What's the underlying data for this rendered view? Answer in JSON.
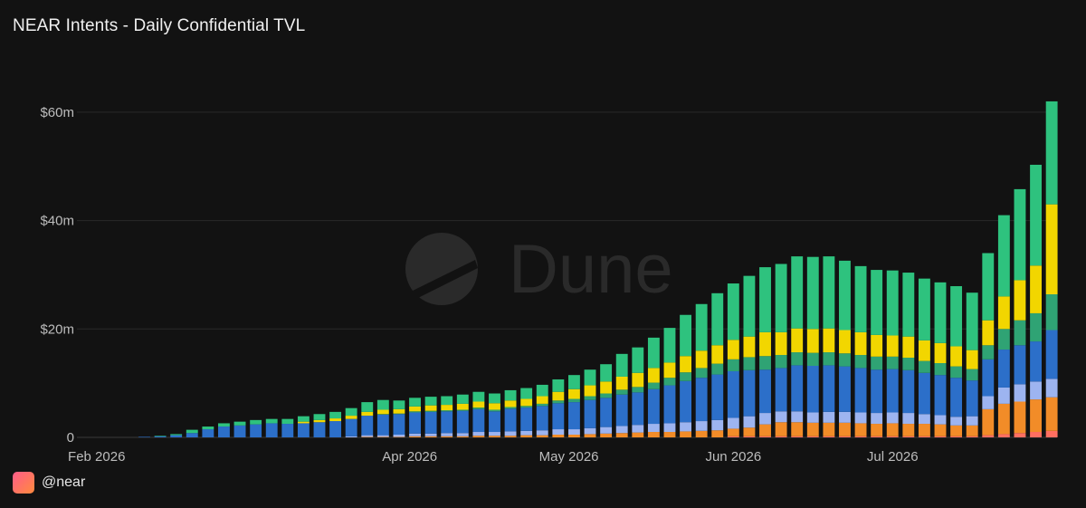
{
  "header": {
    "title": "NEAR Intents - Daily Confidential TVL"
  },
  "watermark": {
    "text": "Dune"
  },
  "footer": {
    "handle": "@near"
  },
  "colors": {
    "background": "#121212",
    "grid": "#2a2a2a",
    "tick_text": "#bdbdbd",
    "series": [
      "#ff6f61",
      "#f28c28",
      "#9db4f0",
      "#2c6fc9",
      "#2fa374",
      "#f2d600",
      "#2ec27e"
    ]
  },
  "chart_data": {
    "type": "bar",
    "stacked": true,
    "title": "NEAR Intents - Daily Confidential TVL",
    "xlabel": "",
    "ylabel": "",
    "ylim": [
      0,
      60000000
    ],
    "y_ticks": [
      {
        "value": 0,
        "label": "0"
      },
      {
        "value": 20000000,
        "label": "$20m"
      },
      {
        "value": 40000000,
        "label": "$40m"
      },
      {
        "value": 60000000,
        "label": "$60m"
      }
    ],
    "x_ticks": [
      {
        "date": "2026-02-01",
        "label": "Feb 2026"
      },
      {
        "date": "2026-04-01",
        "label": "Apr 2026"
      },
      {
        "date": "2026-05-01",
        "label": "May 2026"
      },
      {
        "date": "2026-06-01",
        "label": "Jun 2026"
      },
      {
        "date": "2026-07-01",
        "label": "Jul 2026"
      }
    ],
    "grid": true,
    "legend": "none",
    "categories": [
      "2026-02-01",
      "2026-02-04",
      "2026-02-07",
      "2026-02-10",
      "2026-02-13",
      "2026-02-16",
      "2026-02-19",
      "2026-02-22",
      "2026-02-25",
      "2026-02-28",
      "2026-03-03",
      "2026-03-06",
      "2026-03-09",
      "2026-03-12",
      "2026-03-15",
      "2026-03-18",
      "2026-03-21",
      "2026-03-24",
      "2026-03-27",
      "2026-03-30",
      "2026-04-02",
      "2026-04-05",
      "2026-04-08",
      "2026-04-11",
      "2026-04-14",
      "2026-04-17",
      "2026-04-20",
      "2026-04-23",
      "2026-04-26",
      "2026-04-29",
      "2026-05-02",
      "2026-05-05",
      "2026-05-08",
      "2026-05-11",
      "2026-05-14",
      "2026-05-17",
      "2026-05-20",
      "2026-05-23",
      "2026-05-26",
      "2026-05-29",
      "2026-06-01",
      "2026-06-04",
      "2026-06-07",
      "2026-06-10",
      "2026-06-13",
      "2026-06-16",
      "2026-06-19",
      "2026-06-22",
      "2026-06-25",
      "2026-06-28",
      "2026-07-01",
      "2026-07-04",
      "2026-07-07",
      "2026-07-10",
      "2026-07-13",
      "2026-07-16",
      "2026-07-19",
      "2026-07-22",
      "2026-07-25",
      "2026-07-28",
      "2026-07-31"
    ],
    "series": [
      {
        "values": [
          0,
          0,
          0,
          0,
          0,
          0,
          0,
          0,
          0,
          0,
          0,
          0,
          0,
          0,
          0,
          0,
          0,
          0,
          0,
          0,
          0,
          0,
          0,
          0,
          0,
          0,
          0,
          0,
          0,
          0,
          0,
          0,
          0,
          0,
          0,
          0,
          0,
          0,
          0,
          0,
          0.2,
          0.2,
          0.2,
          0.2,
          0.2,
          0.2,
          0.2,
          0.2,
          0.2,
          0.2,
          0.2,
          0.2,
          0.2,
          0.2,
          0.2,
          0.2,
          0.4,
          0.6,
          0.8,
          1.0,
          1.2
        ]
      },
      {
        "values": [
          0,
          0,
          0,
          0,
          0,
          0,
          0,
          0,
          0,
          0,
          0,
          0,
          0,
          0,
          0,
          0,
          0,
          0.1,
          0.1,
          0.1,
          0.2,
          0.2,
          0.2,
          0.2,
          0.3,
          0.3,
          0.3,
          0.4,
          0.4,
          0.5,
          0.5,
          0.6,
          0.7,
          0.8,
          0.9,
          1.0,
          1.0,
          1.1,
          1.2,
          1.3,
          1.4,
          1.6,
          2.2,
          2.6,
          2.6,
          2.5,
          2.5,
          2.5,
          2.4,
          2.3,
          2.4,
          2.3,
          2.3,
          2.2,
          2.0,
          2.0,
          4.8,
          5.6,
          5.8,
          6.0,
          6.2
        ]
      },
      {
        "values": [
          0,
          0,
          0,
          0,
          0,
          0,
          0,
          0,
          0,
          0,
          0,
          0,
          0,
          0,
          0,
          0,
          0.2,
          0.3,
          0.3,
          0.4,
          0.5,
          0.5,
          0.6,
          0.6,
          0.7,
          0.7,
          0.8,
          0.8,
          0.9,
          1.0,
          1.0,
          1.1,
          1.2,
          1.3,
          1.4,
          1.5,
          1.6,
          1.7,
          1.8,
          1.9,
          2.0,
          2.1,
          2.1,
          2.0,
          2.0,
          1.9,
          2.0,
          2.0,
          2.0,
          2.0,
          2.0,
          2.0,
          1.8,
          1.7,
          1.6,
          1.7,
          2.4,
          3.0,
          3.2,
          3.3,
          3.4
        ]
      },
      {
        "values": [
          0,
          0,
          0,
          0.1,
          0.2,
          0.4,
          0.8,
          1.5,
          2.0,
          2.2,
          2.4,
          2.6,
          2.5,
          2.6,
          2.8,
          3.0,
          3.2,
          3.6,
          3.8,
          3.8,
          3.9,
          4.0,
          4.0,
          4.1,
          4.2,
          3.8,
          4.2,
          4.3,
          4.5,
          4.8,
          5.0,
          5.2,
          5.4,
          5.8,
          6.0,
          6.4,
          7.0,
          7.6,
          8.0,
          8.4,
          8.6,
          8.5,
          8.0,
          8.0,
          8.5,
          8.6,
          8.6,
          8.4,
          8.2,
          8.0,
          8.0,
          7.9,
          7.6,
          7.4,
          7.2,
          6.6,
          6.8,
          7.0,
          7.2,
          7.4,
          9.0
        ]
      },
      {
        "values": [
          0,
          0,
          0,
          0,
          0,
          0,
          0,
          0,
          0,
          0,
          0,
          0,
          0,
          0,
          0,
          0,
          0,
          0,
          0.1,
          0.1,
          0.2,
          0.2,
          0.2,
          0.2,
          0.3,
          0.3,
          0.3,
          0.3,
          0.4,
          0.5,
          0.6,
          0.7,
          0.8,
          0.9,
          1.0,
          1.2,
          1.4,
          1.6,
          1.8,
          2.0,
          2.2,
          2.4,
          2.5,
          2.4,
          2.4,
          2.4,
          2.4,
          2.4,
          2.4,
          2.4,
          2.3,
          2.3,
          2.2,
          2.2,
          2.1,
          2.1,
          2.6,
          3.8,
          4.6,
          5.2,
          6.6
        ]
      },
      {
        "values": [
          0,
          0,
          0,
          0,
          0,
          0,
          0,
          0,
          0,
          0,
          0,
          0,
          0,
          0.3,
          0.4,
          0.5,
          0.6,
          0.7,
          0.8,
          0.8,
          0.9,
          1.0,
          1.0,
          1.1,
          1.1,
          1.2,
          1.2,
          1.3,
          1.4,
          1.6,
          1.8,
          2.0,
          2.2,
          2.4,
          2.6,
          2.7,
          2.8,
          3.0,
          3.2,
          3.4,
          3.6,
          3.8,
          4.4,
          4.2,
          4.4,
          4.4,
          4.4,
          4.3,
          4.2,
          4.0,
          3.9,
          3.9,
          3.8,
          3.7,
          3.7,
          3.5,
          4.6,
          6.0,
          7.4,
          8.8,
          16.6
        ]
      },
      {
        "values": [
          0,
          0,
          0,
          0,
          0.1,
          0.2,
          0.6,
          0.5,
          0.6,
          0.7,
          0.8,
          0.8,
          0.9,
          1.0,
          1.1,
          1.2,
          1.4,
          1.8,
          1.8,
          1.6,
          1.6,
          1.6,
          1.6,
          1.7,
          1.8,
          1.8,
          1.9,
          2.0,
          2.1,
          2.3,
          2.6,
          2.9,
          3.2,
          4.2,
          4.7,
          5.6,
          6.4,
          7.6,
          8.6,
          9.6,
          10.4,
          11.2,
          12.0,
          12.6,
          13.3,
          13.3,
          13.3,
          12.8,
          12.2,
          12.0,
          12.0,
          11.8,
          11.4,
          11.2,
          11.1,
          10.6,
          12.4,
          15.0,
          16.8,
          18.6,
          19.0
        ]
      }
    ]
  }
}
